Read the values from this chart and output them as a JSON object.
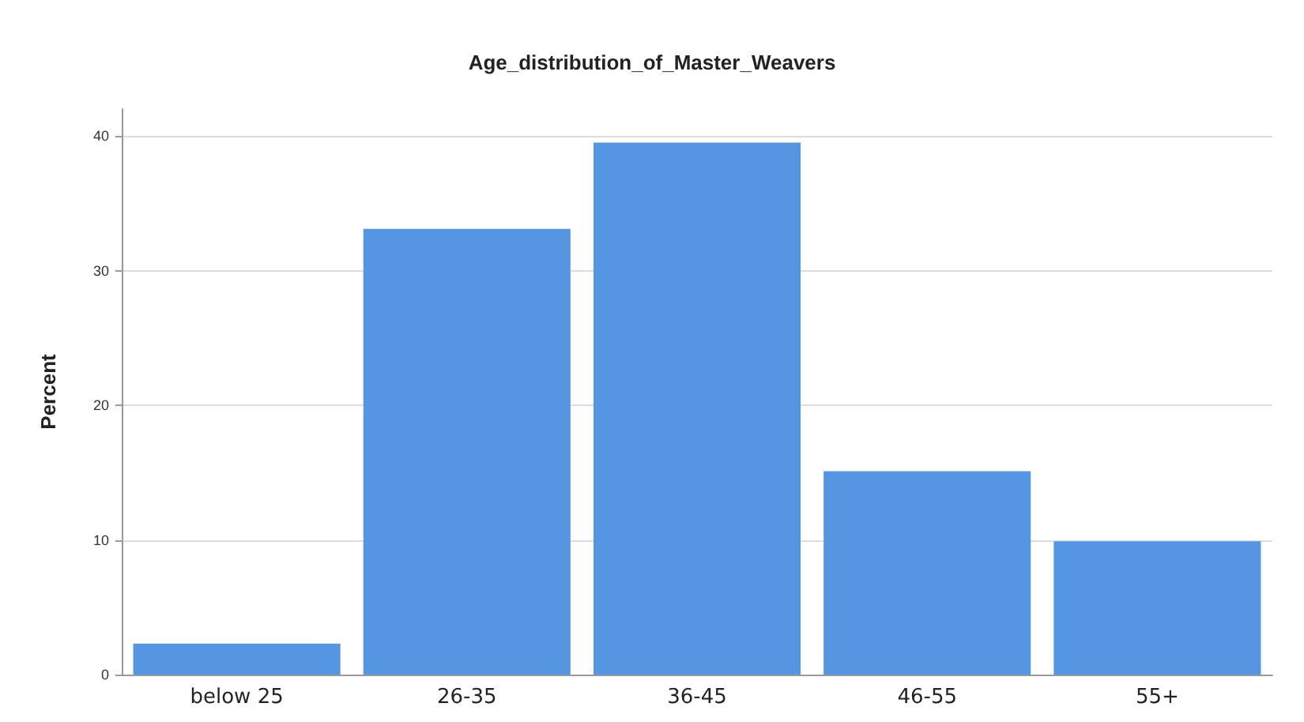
{
  "chart_data": {
    "type": "bar",
    "title": "Age_distribution_of_Master_Weavers",
    "ylabel": "Percent",
    "categories": [
      "below 25",
      "26-35",
      "36-45",
      "46-55",
      "55+"
    ],
    "values": [
      2.3,
      33.1,
      39.5,
      15.1,
      9.9
    ],
    "color": "#5596e3",
    "ylim": [
      0,
      42
    ],
    "yticks": [
      0,
      10,
      20,
      30,
      40
    ],
    "grid": "y"
  }
}
